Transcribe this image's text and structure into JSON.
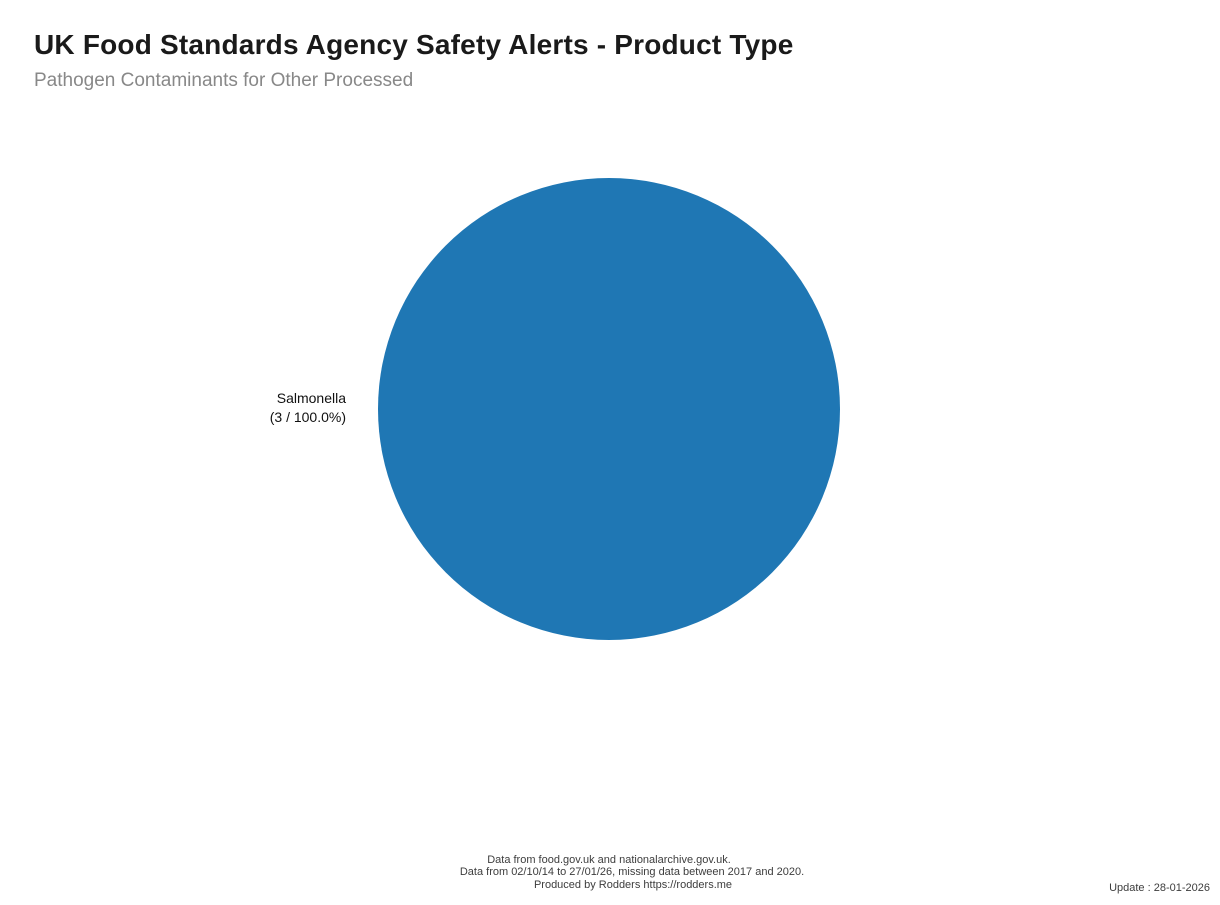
{
  "header": {
    "title": "UK Food Standards Agency Safety Alerts - Product Type",
    "subtitle": "Pathogen Contaminants for Other Processed"
  },
  "chart_data": {
    "type": "pie",
    "title": "UK Food Standards Agency Safety Alerts - Product Type",
    "subtitle": "Pathogen Contaminants for Other Processed",
    "categories": [
      "Salmonella"
    ],
    "values": [
      3
    ],
    "percentages": [
      100.0
    ],
    "total": 3,
    "slices": [
      {
        "label": "Salmonella",
        "count": 3,
        "percent": 100.0,
        "color": "#1f77b4",
        "label_line1": "Salmonella",
        "label_line2": "(3 / 100.0%)"
      }
    ],
    "legend_position": "none",
    "grid": false
  },
  "pie_label": {
    "line1": "Salmonella",
    "line2": "(3 / 100.0%)"
  },
  "footer": {
    "line1": "Data from food.gov.uk and nationalarchive.gov.uk.",
    "line2": "Data from 02/10/14 to 27/01/26, missing data between 2017 and 2020.",
    "line3": "Produced by Rodders https://rodders.me",
    "update": "Update : 28-01-2026"
  },
  "colors": {
    "slice": "#1f77b4",
    "title": "#1a1a1a",
    "subtitle": "#888888",
    "label_text": "#111111",
    "footer_text": "#3d3d3d",
    "background": "#ffffff"
  }
}
